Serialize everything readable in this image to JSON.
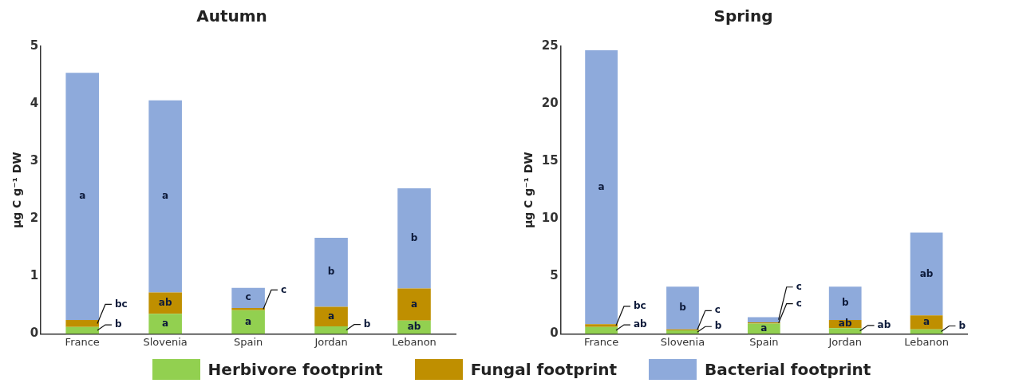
{
  "chart_data": [
    {
      "type": "bar",
      "title": "Autumn",
      "ylabel": "µg C g⁻¹ DW",
      "categories": [
        "France",
        "Slovenia",
        "Spain",
        "Jordan",
        "Lebanon"
      ],
      "stacked": true,
      "ylim": [
        0,
        5
      ],
      "yticks": [
        0,
        1,
        2,
        3,
        4,
        5
      ],
      "grid": false,
      "legend": "bottom",
      "series": [
        {
          "name": "Herbivore footprint",
          "color": "#92d050",
          "values": [
            0.12,
            0.35,
            0.41,
            0.13,
            0.23
          ],
          "value_labels": [
            "b",
            "a",
            "a",
            "b",
            "ab"
          ]
        },
        {
          "name": "Fungal footprint",
          "color": "#bf8f00",
          "values": [
            0.12,
            0.37,
            0.04,
            0.34,
            0.56
          ],
          "value_labels": [
            "bc",
            "ab",
            "c",
            "a",
            "a"
          ]
        },
        {
          "name": "Bacterial footprint",
          "color": "#8eaadb",
          "values": [
            4.3,
            3.34,
            0.35,
            1.2,
            1.74
          ],
          "value_labels": [
            "a",
            "a",
            "c",
            "b",
            "b"
          ]
        }
      ]
    },
    {
      "type": "bar",
      "title": "Spring",
      "ylabel": "µg C g⁻¹ DW",
      "categories": [
        "France",
        "Slovenia",
        "Spain",
        "Jordan",
        "Lebanon"
      ],
      "stacked": true,
      "ylim": [
        0,
        25
      ],
      "yticks": [
        0,
        5,
        10,
        15,
        20,
        25
      ],
      "grid": false,
      "series": [
        {
          "color": "#92d050",
          "values": [
            0.6,
            0.3,
            0.9,
            0.5,
            0.4
          ],
          "value_labels": [
            "ab",
            "b",
            "a",
            "ab",
            "b"
          ]
        },
        {
          "color": "#bf8f00",
          "values": [
            0.25,
            0.1,
            0.1,
            0.7,
            1.2
          ],
          "value_labels": [
            "bc",
            "c",
            "c",
            "ab",
            "a"
          ]
        },
        {
          "color": "#8eaadb",
          "values": [
            23.8,
            3.7,
            0.45,
            2.9,
            7.2
          ],
          "value_labels": [
            "a",
            "b",
            "c",
            "b",
            "ab"
          ]
        }
      ]
    }
  ]
}
